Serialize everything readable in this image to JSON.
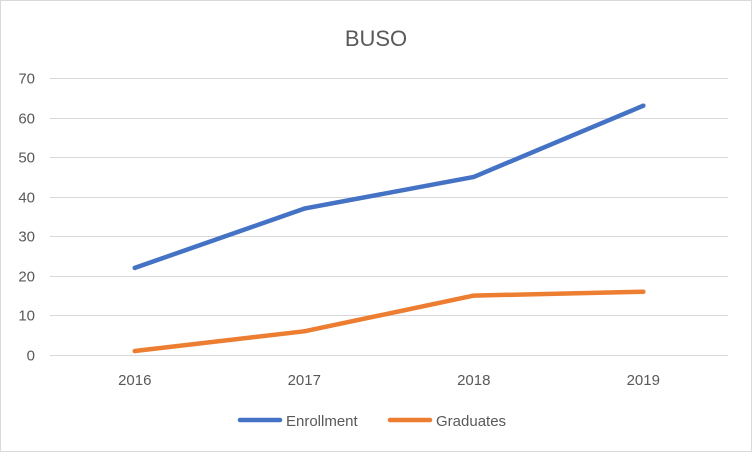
{
  "chart_data": {
    "type": "line",
    "title": "BUSO",
    "xlabel": "",
    "ylabel": "",
    "categories": [
      "2016",
      "2017",
      "2018",
      "2019"
    ],
    "ylim": [
      0,
      70
    ],
    "yticks": [
      0,
      10,
      20,
      30,
      40,
      50,
      60,
      70
    ],
    "grid": true,
    "legend_position": "bottom",
    "series": [
      {
        "name": "Enrollment",
        "color": "#4472c4",
        "values": [
          22,
          37,
          45,
          63
        ]
      },
      {
        "name": "Graduates",
        "color": "#ed7d31",
        "values": [
          1,
          6,
          15,
          16
        ]
      }
    ]
  }
}
